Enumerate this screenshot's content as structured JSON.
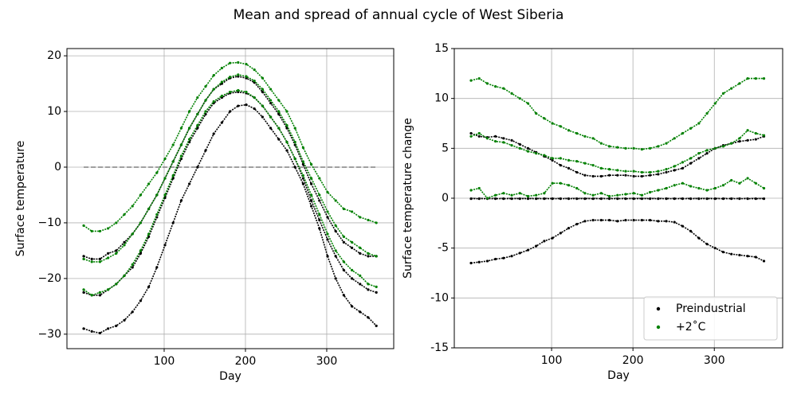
{
  "title": "Mean and spread of annual cycle of West Siberia",
  "chart_data": [
    {
      "type": "scatter",
      "xlabel": "Day",
      "ylabel": "Surface temperature",
      "x": [
        1,
        11,
        21,
        31,
        41,
        51,
        61,
        71,
        81,
        91,
        101,
        111,
        121,
        131,
        141,
        151,
        161,
        171,
        181,
        191,
        201,
        211,
        221,
        231,
        241,
        251,
        261,
        271,
        281,
        291,
        301,
        311,
        321,
        331,
        341,
        351,
        361
      ],
      "xlim": [
        -19.6,
        382.4
      ],
      "xticks": [
        100,
        200,
        300
      ],
      "ylim": [
        -32.6,
        21.3
      ],
      "yticks": [
        {
          "value": -30,
          "label": "−30"
        },
        {
          "value": -20,
          "label": "−20"
        },
        {
          "value": -10,
          "label": "−10"
        },
        0,
        10,
        20
      ],
      "grid": true,
      "hline": 0,
      "series": [
        {
          "color": "#000000",
          "values": [
            -29,
            -29.5,
            -29.8,
            -29,
            -28.5,
            -27.5,
            -26,
            -24,
            -21.5,
            -18,
            -14,
            -10,
            -6,
            -3,
            0,
            3,
            6,
            8,
            10,
            11,
            11.2,
            10.5,
            9,
            7,
            5,
            3,
            0,
            -3,
            -7,
            -11,
            -16,
            -20,
            -23,
            -25,
            -26,
            -27,
            -28.5
          ]
        },
        {
          "color": "#000000",
          "values": [
            -22.5,
            -23,
            -23,
            -22,
            -21,
            -19.5,
            -18,
            -15.5,
            -12.5,
            -9,
            -5.5,
            -2,
            1.5,
            4.5,
            7,
            9.5,
            11.5,
            12.5,
            13.3,
            13.5,
            13.3,
            12.5,
            11,
            9,
            7,
            4.5,
            1.5,
            -2,
            -6,
            -9.5,
            -13,
            -16,
            -18.5,
            -20,
            -21,
            -22,
            -22.5
          ]
        },
        {
          "color": "#000000",
          "values": [
            -16,
            -16.5,
            -16.5,
            -15.5,
            -15,
            -13.5,
            -12,
            -10,
            -7.5,
            -5,
            -2,
            1,
            4,
            7,
            9.5,
            12,
            14,
            15,
            16,
            16.3,
            16,
            15.2,
            13.5,
            11.5,
            9.5,
            7,
            4,
            0.5,
            -3,
            -6,
            -9,
            -11.5,
            -13.5,
            -14.5,
            -15.5,
            -16,
            -16
          ]
        },
        {
          "color": "#008000",
          "values": [
            -22,
            -23,
            -22.5,
            -22,
            -21,
            -19.5,
            -17.5,
            -15,
            -12,
            -8.5,
            -5,
            -1.5,
            2,
            5,
            7.5,
            10,
            11.8,
            12.8,
            13.5,
            13.8,
            13.5,
            12.5,
            11,
            9,
            7,
            4.5,
            1.5,
            -1.5,
            -5,
            -8.5,
            -12,
            -15,
            -17,
            -18.5,
            -19.5,
            -21,
            -21.5
          ]
        },
        {
          "color": "#008000",
          "values": [
            -16.5,
            -17,
            -17,
            -16.3,
            -15.5,
            -14,
            -12,
            -10,
            -7.5,
            -5,
            -2,
            1,
            4,
            7,
            9.5,
            12,
            14,
            15.3,
            16.2,
            16.6,
            16.3,
            15.5,
            14,
            12,
            10,
            7.5,
            4.5,
            1,
            -2,
            -5,
            -8,
            -10.5,
            -12.5,
            -13.5,
            -14.5,
            -15.5,
            -16
          ]
        },
        {
          "color": "#008000",
          "values": [
            -10.5,
            -11.5,
            -11.5,
            -11,
            -10,
            -8.5,
            -7,
            -5,
            -3,
            -1,
            1.5,
            4,
            7,
            10,
            12.5,
            14.5,
            16.5,
            17.8,
            18.7,
            18.8,
            18.5,
            17.5,
            16,
            14,
            12,
            10,
            7,
            3.5,
            0.5,
            -2,
            -4.5,
            -6,
            -7.5,
            -8,
            -9,
            -9.5,
            -10
          ]
        }
      ]
    },
    {
      "type": "scatter",
      "xlabel": "Day",
      "ylabel": "Surface temperature change",
      "x": [
        1,
        11,
        21,
        31,
        41,
        51,
        61,
        71,
        81,
        91,
        101,
        111,
        121,
        131,
        141,
        151,
        161,
        171,
        181,
        191,
        201,
        211,
        221,
        231,
        241,
        251,
        261,
        271,
        281,
        291,
        301,
        311,
        321,
        331,
        341,
        351,
        361
      ],
      "xlim": [
        -19.6,
        384
      ],
      "xticks": [
        100,
        200,
        300
      ],
      "ylim": [
        -15,
        15
      ],
      "yticks": [
        15,
        10,
        5,
        0,
        -5,
        -10,
        -15
      ],
      "grid": true,
      "hline": 0,
      "legend": "lower right",
      "series": [
        {
          "name": "Preindustrial",
          "color": "#000000",
          "values": [
            6.5,
            6.2,
            6.1,
            6.2,
            6.0,
            5.8,
            5.4,
            5,
            4.6,
            4.2,
            3.8,
            3.3,
            3,
            2.6,
            2.3,
            2.2,
            2.2,
            2.3,
            2.3,
            2.3,
            2.2,
            2.2,
            2.3,
            2.4,
            2.6,
            2.8,
            3,
            3.5,
            4,
            4.5,
            5,
            5.3,
            5.5,
            5.7,
            5.8,
            5.9,
            6.2
          ]
        },
        {
          "name": "Preindustrial",
          "color": "#000000",
          "values": [
            -6.5,
            -6.4,
            -6.3,
            -6.1,
            -6,
            -5.8,
            -5.5,
            -5.2,
            -4.8,
            -4.3,
            -4,
            -3.5,
            -3,
            -2.6,
            -2.3,
            -2.2,
            -2.2,
            -2.2,
            -2.3,
            -2.2,
            -2.2,
            -2.2,
            -2.2,
            -2.3,
            -2.3,
            -2.4,
            -2.8,
            -3.3,
            -4,
            -4.6,
            -5,
            -5.4,
            -5.6,
            -5.7,
            -5.8,
            -5.9,
            -6.3
          ]
        },
        {
          "name": "Preindustrial",
          "color": "#000000",
          "values": [
            -0.05,
            -0.05,
            -0.05,
            -0.05,
            -0.05,
            -0.05,
            -0.05,
            -0.05,
            -0.05,
            -0.05,
            -0.05,
            -0.05,
            -0.05,
            -0.05,
            -0.05,
            -0.05,
            -0.05,
            -0.05,
            -0.05,
            -0.05,
            -0.05,
            -0.05,
            -0.05,
            -0.05,
            -0.05,
            -0.05,
            -0.05,
            -0.05,
            -0.05,
            -0.05,
            -0.05,
            -0.05,
            -0.05,
            -0.05,
            -0.05,
            -0.05,
            -0.05
          ]
        },
        {
          "name": "+2˚C",
          "color": "#008000",
          "values": [
            11.8,
            12,
            11.5,
            11.2,
            11,
            10.5,
            10,
            9.5,
            8.5,
            8,
            7.5,
            7.2,
            6.8,
            6.5,
            6.2,
            6,
            5.5,
            5.2,
            5.1,
            5,
            5,
            4.9,
            5,
            5.2,
            5.5,
            6,
            6.5,
            7,
            7.5,
            8.5,
            9.5,
            10.5,
            11,
            11.5,
            12,
            12,
            12
          ]
        },
        {
          "name": "+2˚C",
          "color": "#008000",
          "values": [
            6.2,
            6.5,
            6,
            5.7,
            5.6,
            5.3,
            5,
            4.7,
            4.5,
            4.3,
            4,
            4,
            3.8,
            3.7,
            3.5,
            3.3,
            3,
            2.9,
            2.8,
            2.7,
            2.7,
            2.6,
            2.6,
            2.7,
            2.9,
            3.2,
            3.6,
            4,
            4.5,
            4.8,
            5,
            5.2,
            5.5,
            6,
            6.8,
            6.5,
            6.3
          ]
        },
        {
          "name": "+2˚C",
          "color": "#008000",
          "values": [
            0.8,
            1,
            0,
            0.3,
            0.5,
            0.3,
            0.5,
            0.2,
            0.3,
            0.5,
            1.5,
            1.5,
            1.3,
            1,
            0.5,
            0.3,
            0.5,
            0.2,
            0.3,
            0.4,
            0.5,
            0.3,
            0.6,
            0.8,
            1,
            1.3,
            1.5,
            1.2,
            1,
            0.8,
            1,
            1.3,
            1.8,
            1.5,
            2,
            1.5,
            1
          ]
        }
      ]
    }
  ]
}
